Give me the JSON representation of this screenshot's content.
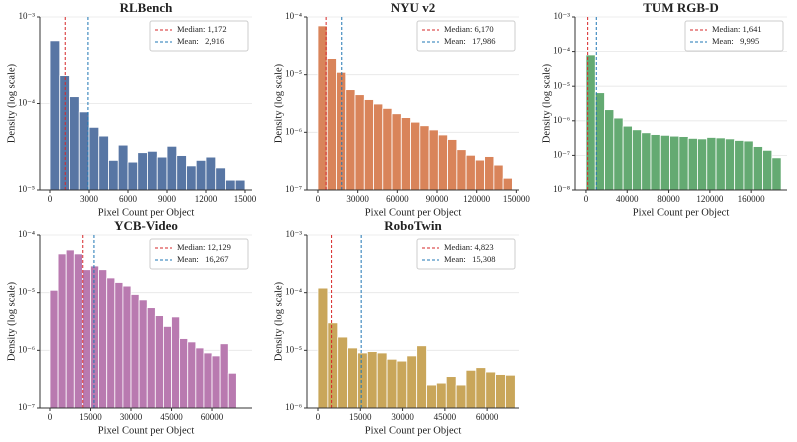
{
  "chart_data": [
    {
      "type": "histogram",
      "title": "RLBench",
      "xlabel": "Pixel Count per Object",
      "ylabel": "Density (log scale)",
      "color": "#5876a4",
      "log_y": true,
      "grid": true,
      "legend": "upper right",
      "bins": [
        0,
        750,
        1500,
        2250,
        3000,
        3750,
        4500,
        5250,
        6000,
        6750,
        7500,
        8250,
        9000,
        9750,
        10500,
        11250,
        12000,
        12750,
        13500,
        14250,
        15000
      ],
      "values": [
        0.00053,
        0.00021,
        0.00012,
        8e-05,
        5.3e-05,
        4.2e-05,
        2.2e-05,
        3.3e-05,
        2.1e-05,
        2.7e-05,
        2.8e-05,
        2.4e-05,
        3.2e-05,
        2.5e-05,
        1.9e-05,
        2.2e-05,
        2.4e-05,
        1.8e-05,
        1.3e-05,
        1.3e-05
      ],
      "xlim": [
        -770,
        15540
      ],
      "xticks": [
        0,
        3000,
        6000,
        9000,
        12000,
        15000
      ],
      "ylim": [
        1e-05,
        0.001
      ],
      "yticks": [
        {
          "value": 1e-05,
          "label": "10⁻⁵"
        },
        {
          "value": 0.0001,
          "label": "10⁻⁴"
        },
        {
          "value": 0.001,
          "label": "10⁻³"
        }
      ],
      "vlines": [
        {
          "name": "Median: 1,172",
          "value": 1172,
          "color": "#d62728"
        },
        {
          "name": "Mean:   2,916",
          "value": 2916,
          "color": "#1f77b4"
        }
      ]
    },
    {
      "type": "histogram",
      "title": "NYU v2",
      "xlabel": "Pixel Count per Object",
      "ylabel": "Density (log scale)",
      "color": "#d9845a",
      "log_y": true,
      "grid": true,
      "legend": "upper right",
      "bins": [
        0,
        7000,
        14000,
        21000,
        28000,
        35000,
        42000,
        49000,
        56000,
        63000,
        70000,
        77000,
        84000,
        91000,
        98000,
        105000,
        112000,
        119000,
        126000,
        133000,
        140000,
        147000
      ],
      "values": [
        7e-05,
        1.9e-05,
        1.1e-05,
        5.5e-06,
        4.5e-06,
        3.7e-06,
        3.1e-06,
        2.6e-06,
        2.1e-06,
        1.8e-06,
        1.5e-06,
        1.3e-06,
        1.1e-06,
        9e-07,
        7.5e-07,
        5e-07,
        4e-07,
        3.3e-07,
        3.8e-07,
        2.7e-07,
        1.6e-07
      ],
      "xlim": [
        -8300,
        152000
      ],
      "xticks": [
        0,
        30000,
        60000,
        90000,
        120000,
        150000
      ],
      "ylim": [
        1e-07,
        0.0001
      ],
      "yticks": [
        {
          "value": 1e-07,
          "label": "10⁻⁷"
        },
        {
          "value": 1e-06,
          "label": "10⁻⁶"
        },
        {
          "value": 1e-05,
          "label": "10⁻⁵"
        },
        {
          "value": 0.0001,
          "label": "10⁻⁴"
        }
      ],
      "vlines": [
        {
          "name": "Median: 6,170",
          "value": 6170,
          "color": "#d62728"
        },
        {
          "name": "Mean:   17,986",
          "value": 17986,
          "color": "#1f77b4"
        }
      ]
    },
    {
      "type": "histogram",
      "title": "TUM RGB-D",
      "xlabel": "Pixel Count per Object",
      "ylabel": "Density (log scale)",
      "color": "#64aa72",
      "log_y": true,
      "grid": true,
      "legend": "upper right",
      "bins": [
        0,
        9000,
        18000,
        27000,
        36000,
        45000,
        54000,
        63000,
        72000,
        81000,
        90000,
        99000,
        108000,
        117000,
        126000,
        135000,
        144000,
        153000,
        162000,
        171000,
        180000,
        189000
      ],
      "values": [
        8e-05,
        6.5e-06,
        2.1e-06,
        1.2e-06,
        7e-07,
        5.5e-07,
        4.5e-07,
        4e-07,
        3.8e-07,
        3.6e-07,
        3.5e-07,
        3.1e-07,
        3e-07,
        3.3e-07,
        3.2e-07,
        3e-07,
        2.7e-07,
        2.6e-07,
        1.8e-07,
        1.4e-07,
        8.5e-08
      ],
      "xlim": [
        -10600,
        194700
      ],
      "xticks": [
        0,
        40000,
        80000,
        120000,
        160000
      ],
      "ylim": [
        1e-08,
        0.001
      ],
      "yticks": [
        {
          "value": 1e-08,
          "label": "10⁻⁸"
        },
        {
          "value": 1e-07,
          "label": "10⁻⁷"
        },
        {
          "value": 1e-06,
          "label": "10⁻⁶"
        },
        {
          "value": 1e-05,
          "label": "10⁻⁵"
        },
        {
          "value": 0.0001,
          "label": "10⁻⁴"
        },
        {
          "value": 0.001,
          "label": "10⁻³"
        }
      ],
      "vlines": [
        {
          "name": "Median: 1,641",
          "value": 1641,
          "color": "#d62728"
        },
        {
          "name": "Mean:   9,995",
          "value": 9995,
          "color": "#1f77b4"
        }
      ]
    },
    {
      "type": "histogram",
      "title": "YCB-Video",
      "xlabel": "Pixel Count per Object",
      "ylabel": "Density (log scale)",
      "color": "#b97ab0",
      "log_y": true,
      "grid": true,
      "legend": "upper right",
      "bins": [
        0,
        3000,
        6000,
        9000,
        12000,
        15000,
        18000,
        21000,
        24000,
        27000,
        30000,
        33000,
        36000,
        39000,
        42000,
        45000,
        48000,
        51000,
        54000,
        57000,
        60000,
        63000,
        66000,
        69000
      ],
      "values": [
        1.1e-05,
        4.7e-05,
        5.5e-05,
        4.7e-05,
        2.5e-05,
        2.9e-05,
        2.5e-05,
        1.8e-05,
        1.5e-05,
        1.3e-05,
        9.3e-06,
        7.5e-06,
        5.5e-06,
        4e-06,
        2.6e-06,
        3.8e-06,
        1.6e-06,
        1.4e-06,
        1.1e-06,
        9e-07,
        8e-07,
        1.3e-06,
        4e-07
      ],
      "xlim": [
        -3700,
        74800
      ],
      "xticks": [
        0,
        15000,
        30000,
        45000,
        60000
      ],
      "ylim": [
        1e-07,
        0.0001
      ],
      "yticks": [
        {
          "value": 1e-07,
          "label": "10⁻⁷"
        },
        {
          "value": 1e-06,
          "label": "10⁻⁶"
        },
        {
          "value": 1e-05,
          "label": "10⁻⁵"
        },
        {
          "value": 0.0001,
          "label": "10⁻⁴"
        }
      ],
      "vlines": [
        {
          "name": "Median: 12,129",
          "value": 12129,
          "color": "#d62728"
        },
        {
          "name": "Mean:   16,267",
          "value": 16267,
          "color": "#1f77b4"
        }
      ]
    },
    {
      "type": "histogram",
      "title": "RoboTwin",
      "xlabel": "Pixel Count per Object",
      "ylabel": "Density (log scale)",
      "color": "#c9a65a",
      "log_y": true,
      "grid": true,
      "legend": "upper right",
      "bins": [
        0,
        3500,
        7000,
        10500,
        14000,
        17500,
        21000,
        24500,
        28000,
        31500,
        35000,
        38500,
        42000,
        45500,
        49000,
        52500,
        56000,
        59500,
        63000,
        66500,
        70000
      ],
      "values": [
        0.00012,
        3e-05,
        1.7e-05,
        1.1e-05,
        9e-06,
        9.5e-06,
        9e-06,
        7e-06,
        6.5e-06,
        8e-06,
        1.2e-05,
        2.5e-06,
        2.7e-06,
        3.5e-06,
        2.5e-06,
        4.5e-06,
        5e-06,
        4.2e-06,
        3.8e-06,
        3.7e-06
      ],
      "xlim": [
        -3900,
        71300
      ],
      "xticks": [
        0,
        15000,
        30000,
        45000,
        60000
      ],
      "ylim": [
        1e-06,
        0.001
      ],
      "yticks": [
        {
          "value": 1e-06,
          "label": "10⁻⁶"
        },
        {
          "value": 1e-05,
          "label": "10⁻⁵"
        },
        {
          "value": 0.0001,
          "label": "10⁻⁴"
        },
        {
          "value": 0.001,
          "label": "10⁻³"
        }
      ],
      "vlines": [
        {
          "name": "Median: 4,823",
          "value": 4823,
          "color": "#d62728"
        },
        {
          "name": "Mean:   15,308",
          "value": 15308,
          "color": "#1f77b4"
        }
      ]
    }
  ]
}
